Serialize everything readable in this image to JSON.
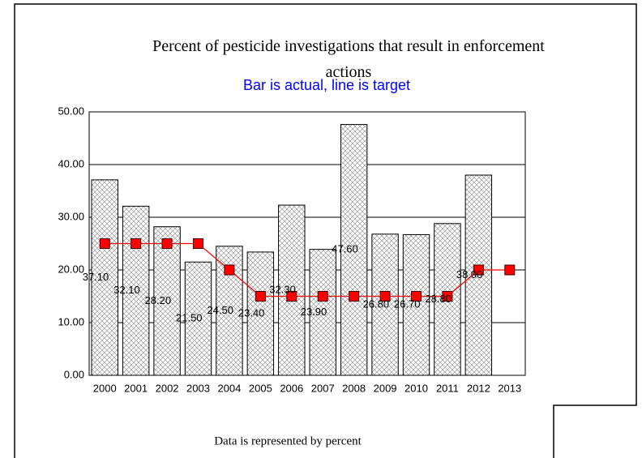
{
  "chart_data": {
    "type": "bar",
    "title": "Percent of pesticide investigations that result in enforcement actions",
    "subtitle": "Bar is actual, line is target",
    "footer": "Data is represented by percent",
    "categories": [
      "2000",
      "2001",
      "2002",
      "2003",
      "2004",
      "2005",
      "2006",
      "2007",
      "2008",
      "2009",
      "2010",
      "2011",
      "2012",
      "2013"
    ],
    "series": [
      {
        "type": "bar",
        "color": "#c0c0c0",
        "values": [
          37.1,
          32.1,
          28.2,
          21.5,
          24.5,
          23.4,
          32.3,
          23.9,
          47.6,
          26.8,
          26.7,
          28.8,
          38.0,
          null
        ],
        "value_labels": [
          "37.10",
          "32.10",
          "28.20",
          "21.50",
          "24.50",
          "23.40",
          "32.30",
          "23.90",
          "47.60",
          "26.80",
          "26.70",
          "28.80",
          "38.00",
          null
        ]
      },
      {
        "type": "line",
        "color": "#ff0000",
        "values": [
          25,
          25,
          25,
          25,
          20,
          15,
          15,
          15,
          15,
          15,
          15,
          15,
          20,
          20
        ]
      }
    ],
    "ylim": [
      0,
      50
    ],
    "yticks": [
      {
        "value": 0,
        "label": "0.00"
      },
      {
        "value": 10,
        "label": "10.00"
      },
      {
        "value": 20,
        "label": "20.00"
      },
      {
        "value": 30,
        "label": "30.00"
      },
      {
        "value": 40,
        "label": "40.00"
      },
      {
        "value": 50,
        "label": "50.00"
      }
    ],
    "grid": true
  }
}
